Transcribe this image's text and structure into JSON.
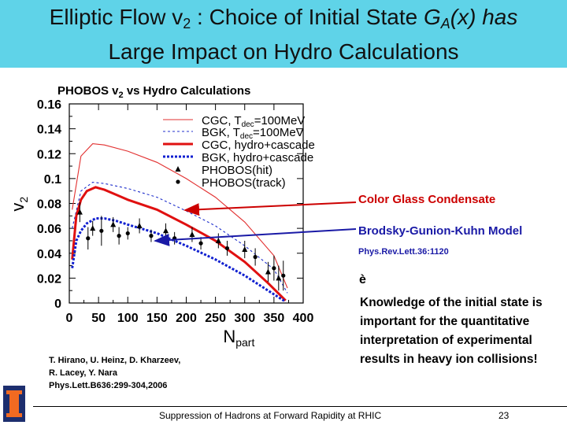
{
  "slide": {
    "title_line1_a": "Elliptic Flow v",
    "title_line1_sub": "2",
    "title_line1_b": " : Choice of Initial State ",
    "title_line1_g": "G",
    "title_line1_gsub": "A",
    "title_line1_c": "(x) has",
    "title_line2": "Large Impact on Hydro Calculations",
    "cgc_label": "Color Glass Condensate",
    "bgk_label": "Brodsky-Gunion-Kuhn Model",
    "bgk_ref": "Phys.Rev.Lett.36:1120",
    "arrow": "è",
    "knowledge_text": "Knowledge of the initial state is important for the quantitative interpretation of experimental results in heavy ion collisions!",
    "citation_line1": "T. Hirano, U. Heinz, D. Kharzeev,",
    "citation_line2": "R. Lacey, Y. Nara",
    "citation_line3": "Phys.Lett.B636:299-304,2006",
    "footer": "Suppression of Hadrons at Forward Rapidity at RHIC",
    "page_number": "23",
    "logo_mark": "I"
  },
  "chart_data": {
    "type": "line",
    "title": "PHOBOS v2 vs Hydro Calculations",
    "title_main": "PHOBOS v",
    "title_sub": "2",
    "title_tail": " vs Hydro Calculations",
    "xlabel_main": "N",
    "xlabel_sub": "part",
    "ylabel_main": "v",
    "ylabel_sub": "2",
    "xlim": [
      0,
      400
    ],
    "ylim": [
      0,
      0.16
    ],
    "xticks": [
      "0",
      "50",
      "100",
      "150",
      "200",
      "250",
      "300",
      "350",
      "400"
    ],
    "yticks": [
      "0",
      "0.02",
      "0.04",
      "0.06",
      "0.08",
      "0.1",
      "0.12",
      "0.14",
      "0.16"
    ],
    "series": [
      {
        "name": "CGC, Tdec=100MeV",
        "name_main": "CGC, T",
        "name_sub": "dec",
        "name_tail": "=100MeV",
        "style": "thin",
        "color": "#e23030",
        "x": [
          5,
          20,
          40,
          60,
          100,
          150,
          200,
          250,
          300,
          350,
          373
        ],
        "y": [
          0.075,
          0.118,
          0.128,
          0.127,
          0.122,
          0.113,
          0.1,
          0.085,
          0.065,
          0.038,
          0.012
        ]
      },
      {
        "name": "BGK, Tdec=100MeV",
        "name_main": "BGK, T",
        "name_sub": "dec",
        "name_tail": "=100MeV",
        "style": "thin-dash",
        "color": "#2030cc",
        "x": [
          5,
          20,
          40,
          60,
          100,
          150,
          200,
          250,
          300,
          350,
          373
        ],
        "y": [
          0.06,
          0.09,
          0.097,
          0.096,
          0.092,
          0.085,
          0.074,
          0.062,
          0.046,
          0.027,
          0.008
        ]
      },
      {
        "name": "CGC, hydro+cascade",
        "name_main": "CGC, hydro+cascade",
        "name_sub": "",
        "name_tail": "",
        "style": "thick",
        "color": "#e01010",
        "x": [
          5,
          12,
          20,
          30,
          45,
          60,
          80,
          100,
          150,
          200,
          250,
          300,
          340,
          370
        ],
        "y": [
          0.035,
          0.07,
          0.083,
          0.09,
          0.093,
          0.091,
          0.087,
          0.083,
          0.075,
          0.063,
          0.05,
          0.033,
          0.016,
          0.002
        ]
      },
      {
        "name": "BGK, hydro+cascade",
        "name_main": "BGK, hydro+cascade",
        "name_sub": "",
        "name_tail": "",
        "style": "thick-dash",
        "color": "#1020d0",
        "x": [
          5,
          12,
          20,
          30,
          45,
          60,
          80,
          100,
          150,
          200,
          250,
          300,
          340,
          370
        ],
        "y": [
          0.028,
          0.05,
          0.058,
          0.064,
          0.068,
          0.068,
          0.066,
          0.063,
          0.056,
          0.046,
          0.035,
          0.022,
          0.01,
          0.001
        ]
      },
      {
        "name": "PHOBOS(hit)",
        "name_main": "PHOBOS(hit)",
        "name_sub": "",
        "name_tail": "",
        "style": "triangle",
        "color": "#000000",
        "x": [
          18,
          40,
          75,
          120,
          165,
          210,
          255,
          300,
          340,
          358
        ],
        "y": [
          0.073,
          0.06,
          0.063,
          0.062,
          0.058,
          0.055,
          0.05,
          0.043,
          0.025,
          0.02
        ],
        "err": [
          0.008,
          0.006,
          0.006,
          0.006,
          0.006,
          0.006,
          0.006,
          0.007,
          0.008,
          0.01
        ]
      },
      {
        "name": "PHOBOS(track)",
        "name_main": "PHOBOS(track)",
        "name_sub": "",
        "name_tail": "",
        "style": "circle",
        "color": "#000000",
        "x": [
          32,
          55,
          85,
          100,
          140,
          180,
          225,
          270,
          318,
          350,
          366
        ],
        "y": [
          0.052,
          0.058,
          0.054,
          0.056,
          0.054,
          0.052,
          0.048,
          0.044,
          0.037,
          0.028,
          0.022
        ],
        "err": [
          0.009,
          0.012,
          0.007,
          0.005,
          0.005,
          0.005,
          0.005,
          0.006,
          0.007,
          0.01,
          0.012
        ]
      }
    ]
  }
}
